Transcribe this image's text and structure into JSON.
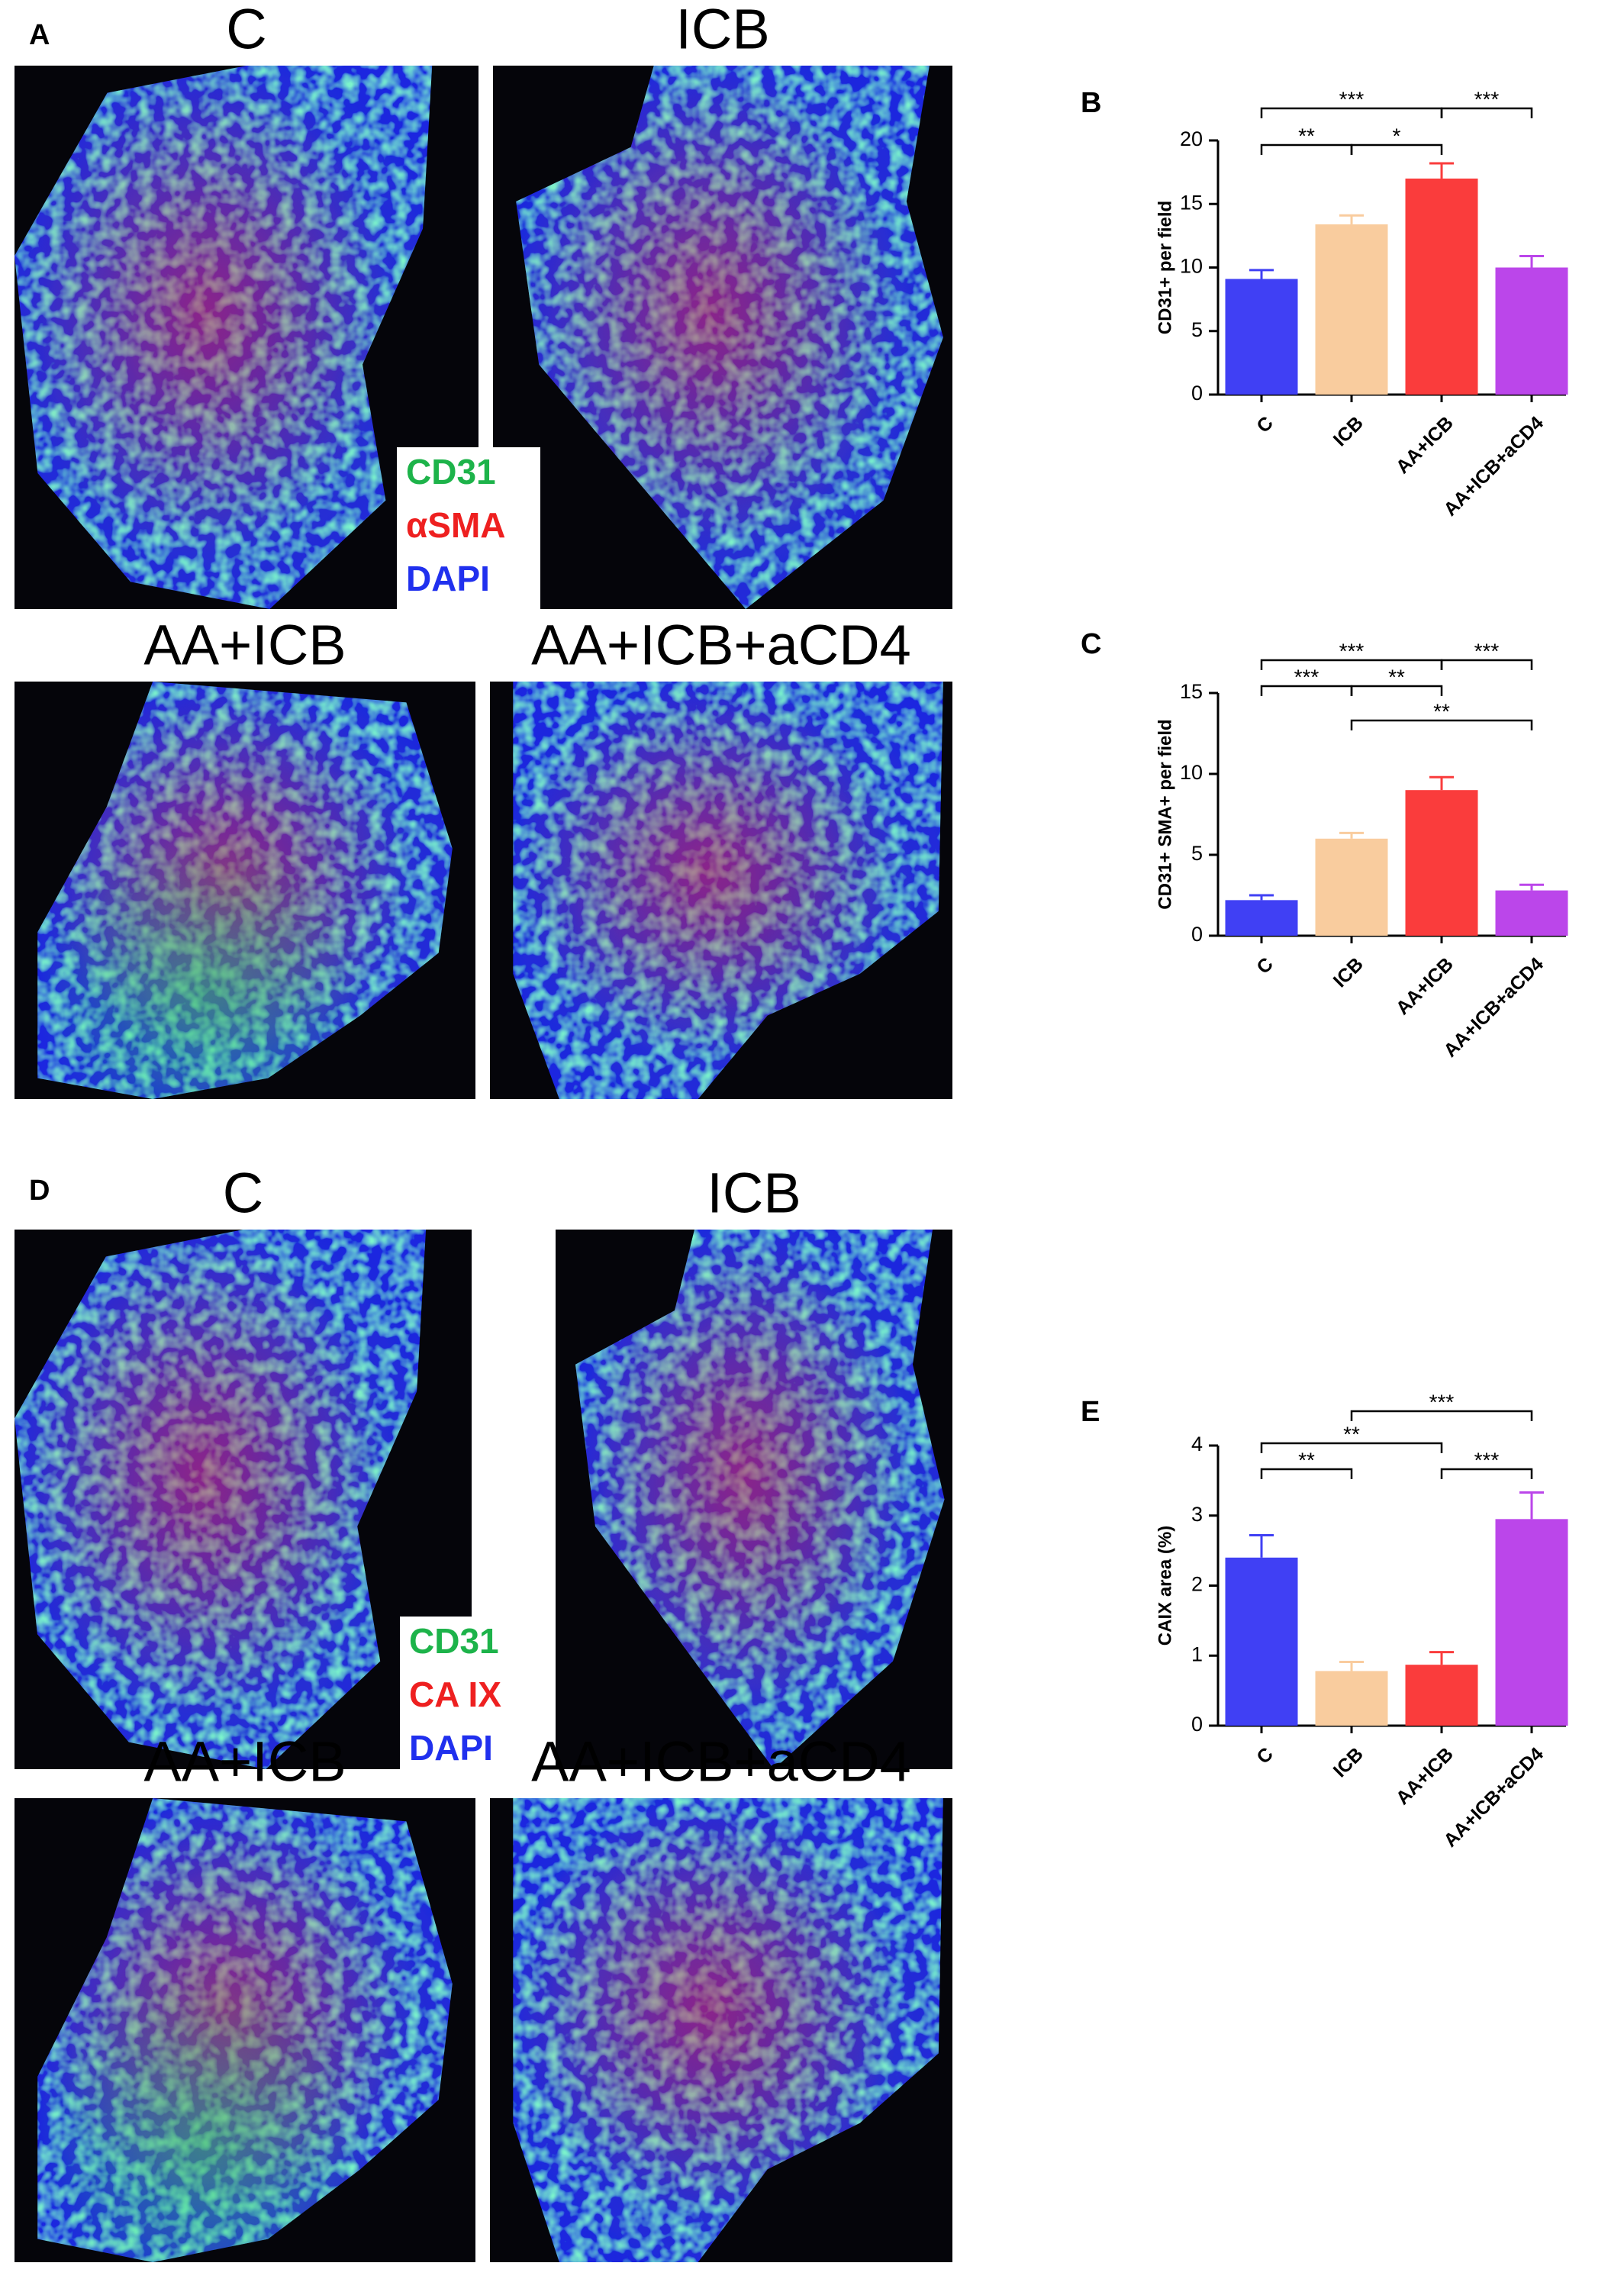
{
  "figure": {
    "panels": [
      {
        "label": "A",
        "image_titles": [
          "C",
          "ICB",
          "AA+ICB",
          "AA+ICB+aCD4"
        ],
        "legend": [
          {
            "text": "CD31",
            "color": "#1db34a"
          },
          {
            "text": "αSMA",
            "color": "#ee2020"
          },
          {
            "text": "DAPI",
            "color": "#2030ee"
          }
        ]
      },
      {
        "label": "D",
        "image_titles": [
          "C",
          "ICB",
          "AA+ICB",
          "AA+ICB+aCD4"
        ],
        "legend": [
          {
            "text": "CD31",
            "color": "#1db34a"
          },
          {
            "text": "CA IX",
            "color": "#ee2020"
          },
          {
            "text": "DAPI",
            "color": "#2030ee"
          }
        ]
      }
    ]
  },
  "chart_data": [
    {
      "type": "bar",
      "panel": "B",
      "ylabel": "CD31+ per field",
      "categories": [
        "C",
        "ICB",
        "AA+ICB",
        "AA+ICB+aCD4"
      ],
      "values": [
        9.1,
        13.4,
        17.0,
        10.0
      ],
      "errors": [
        0.7,
        0.7,
        1.2,
        0.9
      ],
      "colors": [
        "#4040f4",
        "#f9cc9e",
        "#fa3c3c",
        "#bb46ea"
      ],
      "ylim": [
        0,
        20
      ],
      "yticks": [
        0,
        5,
        10,
        15,
        20
      ],
      "annotations": [
        {
          "label": "***",
          "pair": [
            0,
            2
          ]
        },
        {
          "label": "***",
          "pair": [
            2,
            3
          ]
        },
        {
          "label": "**",
          "pair": [
            0,
            1
          ]
        },
        {
          "label": "*",
          "pair": [
            1,
            2
          ]
        }
      ]
    },
    {
      "type": "bar",
      "panel": "C",
      "ylabel": "CD31+ SMA+ per field",
      "categories": [
        "C",
        "ICB",
        "AA+ICB",
        "AA+ICB+aCD4"
      ],
      "values": [
        2.2,
        6.0,
        9.0,
        2.8
      ],
      "errors": [
        0.3,
        0.35,
        0.8,
        0.35
      ],
      "colors": [
        "#4040f4",
        "#f9cc9e",
        "#fa3c3c",
        "#bb46ea"
      ],
      "ylim": [
        0,
        15
      ],
      "yticks": [
        0,
        5,
        10,
        15
      ],
      "annotations": [
        {
          "label": "***",
          "pair": [
            0,
            2
          ]
        },
        {
          "label": "***",
          "pair": [
            2,
            3
          ]
        },
        {
          "label": "***",
          "pair": [
            0,
            1
          ]
        },
        {
          "label": "**",
          "pair": [
            1,
            2
          ]
        },
        {
          "label": "**",
          "pair": [
            1,
            3
          ]
        }
      ]
    },
    {
      "type": "bar",
      "panel": "E",
      "ylabel": "CAIX area (%)",
      "categories": [
        "C",
        "ICB",
        "AA+ICB",
        "AA+ICB+aCD4"
      ],
      "values": [
        2.4,
        0.78,
        0.87,
        2.95
      ],
      "errors": [
        0.32,
        0.13,
        0.18,
        0.38
      ],
      "colors": [
        "#4040f4",
        "#f9cc9e",
        "#fa3c3c",
        "#bb46ea"
      ],
      "ylim": [
        0,
        4
      ],
      "yticks": [
        0,
        1,
        2,
        3,
        4
      ],
      "annotations": [
        {
          "label": "***",
          "pair": [
            1,
            3
          ]
        },
        {
          "label": "**",
          "pair": [
            0,
            2
          ]
        },
        {
          "label": "**",
          "pair": [
            0,
            1
          ]
        },
        {
          "label": "***",
          "pair": [
            2,
            3
          ]
        }
      ]
    }
  ]
}
